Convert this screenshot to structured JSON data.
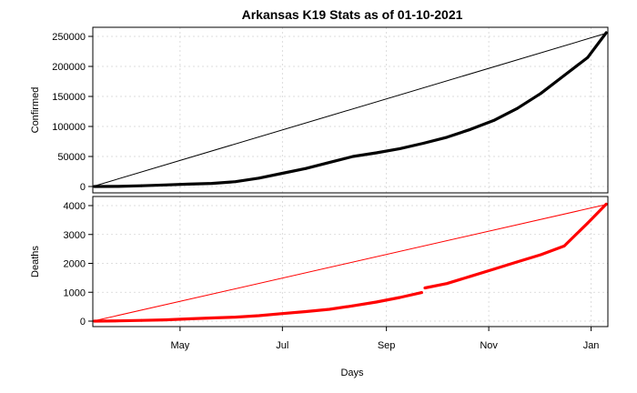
{
  "chart_data": {
    "type": "line",
    "title": "Arkansas K19 Stats as of 01-10-2021",
    "xlabel": "Days",
    "x_ticks": [
      "May",
      "Jul",
      "Sep",
      "Nov",
      "Jan"
    ],
    "grid": true,
    "panels": [
      {
        "name": "confirmed",
        "ylabel": "Confirmed",
        "ylim": [
          0,
          260000
        ],
        "y_ticks": [
          "0",
          "50000",
          "100000",
          "150000",
          "200000",
          "250000"
        ],
        "color": "#000000",
        "reference_line": {
          "from": [
            0,
            0
          ],
          "to": [
            256000,
            256000
          ],
          "type": "diagonal"
        },
        "series": [
          {
            "x": [
              "2020-03-11",
              "2020-03-25",
              "2020-04-08",
              "2020-04-22",
              "2020-05-06",
              "2020-05-20",
              "2020-06-03",
              "2020-06-17",
              "2020-07-01",
              "2020-07-15",
              "2020-07-29",
              "2020-08-12",
              "2020-08-26",
              "2020-09-09",
              "2020-09-23",
              "2020-10-07",
              "2020-10-21",
              "2020-11-04",
              "2020-11-18",
              "2020-12-02",
              "2020-12-16",
              "2020-12-30",
              "2021-01-10"
            ],
            "values": [
              0,
              200,
              1200,
              2500,
              4000,
              5200,
              8000,
              14000,
              22000,
              30000,
              40000,
              50000,
              56000,
              63000,
              72000,
              82000,
              95000,
              110000,
              130000,
              155000,
              185000,
              215000,
              256000
            ]
          }
        ]
      },
      {
        "name": "deaths",
        "ylabel": "Deaths",
        "ylim": [
          0,
          4100
        ],
        "y_ticks": [
          "0",
          "1000",
          "2000",
          "3000",
          "4000"
        ],
        "color": "#ff0000",
        "reference_line": {
          "from": [
            0,
            0
          ],
          "to": [
            4050,
            4050
          ],
          "type": "diagonal"
        },
        "series": [
          {
            "x": [
              "2020-03-11",
              "2020-03-25",
              "2020-04-08",
              "2020-04-22",
              "2020-05-06",
              "2020-05-20",
              "2020-06-03",
              "2020-06-17",
              "2020-07-01",
              "2020-07-15",
              "2020-07-29",
              "2020-08-12",
              "2020-08-26",
              "2020-09-09",
              "2020-09-22",
              "2020-09-24",
              "2020-10-07",
              "2020-10-21",
              "2020-11-04",
              "2020-11-18",
              "2020-12-02",
              "2020-12-16",
              "2020-12-30",
              "2021-01-10"
            ],
            "values": [
              0,
              10,
              25,
              45,
              80,
              110,
              140,
              190,
              260,
              330,
              410,
              530,
              660,
              820,
              990,
              1150,
              1300,
              1550,
              1800,
              2050,
              2300,
              2600,
              3400,
              4050
            ]
          }
        ]
      }
    ]
  }
}
